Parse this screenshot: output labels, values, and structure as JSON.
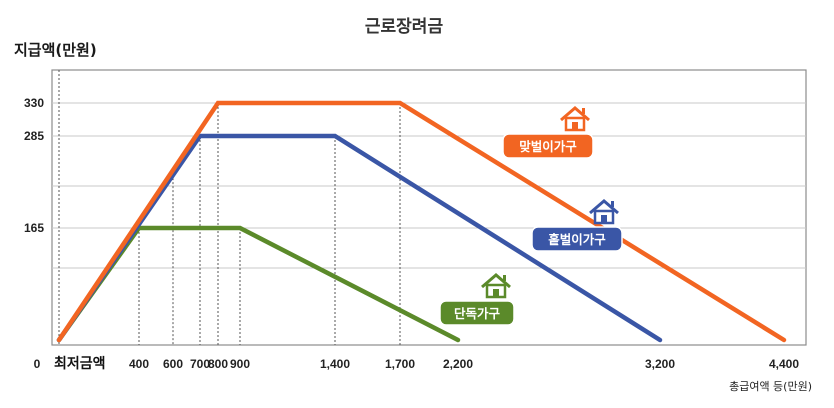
{
  "chart_data": {
    "type": "line",
    "title": "근로장려금",
    "ylabel": "지급액(만원)",
    "xlabel": "총급여액 등(만원)",
    "min_label": "최저금액",
    "xlim": [
      0,
      4400
    ],
    "ylim": [
      0,
      400
    ],
    "x_ticks": [
      {
        "value": 0,
        "label": "0"
      },
      {
        "value": 400,
        "label": "400"
      },
      {
        "value": 600,
        "label": "600"
      },
      {
        "value": 700,
        "label": "700"
      },
      {
        "value": 800,
        "label": "800"
      },
      {
        "value": 900,
        "label": "900"
      },
      {
        "value": 1400,
        "label": "1,400"
      },
      {
        "value": 1700,
        "label": "1,700"
      },
      {
        "value": 2200,
        "label": "2,200"
      },
      {
        "value": 3200,
        "label": "3,200"
      },
      {
        "value": 4400,
        "label": "4,400"
      }
    ],
    "y_ticks": [
      {
        "value": 165,
        "label": "165"
      },
      {
        "value": 285,
        "label": "285"
      },
      {
        "value": 330,
        "label": "330"
      }
    ],
    "grid": true,
    "series": [
      {
        "name": "맞벌이가구",
        "color": "#F26522",
        "points": [
          [
            0,
            0
          ],
          [
            800,
            330
          ],
          [
            1700,
            330
          ],
          [
            4400,
            0
          ]
        ]
      },
      {
        "name": "홑벌이가구",
        "color": "#3A56A6",
        "points": [
          [
            0,
            0
          ],
          [
            700,
            285
          ],
          [
            1400,
            285
          ],
          [
            3200,
            0
          ]
        ]
      },
      {
        "name": "단독가구",
        "color": "#5B8A2A",
        "points": [
          [
            0,
            0
          ],
          [
            400,
            165
          ],
          [
            900,
            165
          ],
          [
            2200,
            0
          ]
        ]
      }
    ]
  }
}
